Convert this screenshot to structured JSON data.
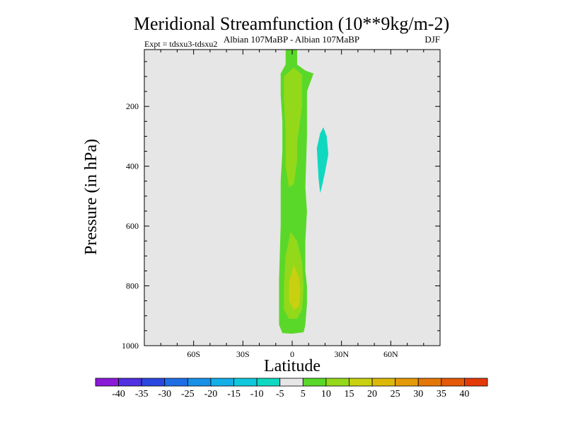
{
  "chart_data": {
    "type": "contour",
    "title": "Meridional Streamfunction (10**9kg/m-2)",
    "subtitle_left": "Albian   107MaBP - Albian   107MaBP",
    "subtitle_right": "DJF",
    "expt_label": "Expt = tdsxu3-tdsxu2",
    "xlabel": "Latitude",
    "ylabel": "Pressure (in hPa)",
    "xlim": [
      -90,
      90
    ],
    "ylim": [
      1000,
      10
    ],
    "x_ticks": [
      {
        "value": -60,
        "label": "60S"
      },
      {
        "value": -30,
        "label": "30S"
      },
      {
        "value": 0,
        "label": "0"
      },
      {
        "value": 30,
        "label": "30N"
      },
      {
        "value": 60,
        "label": "60N"
      }
    ],
    "y_ticks": [
      200,
      400,
      600,
      800,
      1000
    ],
    "background_color": "#e6e6e6",
    "contour_levels": [
      -40,
      -35,
      -30,
      -25,
      -20,
      -15,
      -10,
      -5,
      5,
      10,
      15,
      20,
      25,
      30,
      35,
      40
    ],
    "colorbar_colors": [
      "#8a1ad8",
      "#5030e0",
      "#2a48e0",
      "#1e6ee6",
      "#1890e8",
      "#14aee8",
      "#10c8dc",
      "#10d8c0",
      "#e6e6e6",
      "#5ad82a",
      "#94d81a",
      "#c8d010",
      "#dcb808",
      "#e49a08",
      "#e47608",
      "#e45a08",
      "#e43a08"
    ],
    "regions": [
      {
        "name": "positive-5-10",
        "fill": "#5ad82a",
        "points": [
          [
            -4,
            10
          ],
          [
            3,
            10
          ],
          [
            3,
            60
          ],
          [
            8,
            80
          ],
          [
            13,
            90
          ],
          [
            9,
            150
          ],
          [
            9,
            300
          ],
          [
            8,
            470
          ],
          [
            9,
            550
          ],
          [
            8,
            650
          ],
          [
            8,
            750
          ],
          [
            9,
            800
          ],
          [
            9,
            860
          ],
          [
            8,
            930
          ],
          [
            7,
            955
          ],
          [
            0,
            960
          ],
          [
            -6,
            958
          ],
          [
            -8,
            930
          ],
          [
            -8,
            780
          ],
          [
            -7,
            600
          ],
          [
            -7,
            450
          ],
          [
            -6,
            350
          ],
          [
            -6,
            250
          ],
          [
            -7,
            160
          ],
          [
            -7,
            90
          ],
          [
            -4,
            60
          ]
        ]
      },
      {
        "name": "positive-10-15-upper",
        "fill": "#94d81a",
        "points": [
          [
            -3,
            90
          ],
          [
            1,
            70
          ],
          [
            6,
            95
          ],
          [
            6,
            200
          ],
          [
            3,
            320
          ],
          [
            3,
            380
          ],
          [
            1,
            460
          ],
          [
            -2,
            470
          ],
          [
            -4,
            400
          ],
          [
            -4,
            280
          ],
          [
            -5,
            180
          ],
          [
            -5,
            100
          ]
        ]
      },
      {
        "name": "positive-10-15-lower",
        "fill": "#94d81a",
        "points": [
          [
            -1,
            620
          ],
          [
            3,
            650
          ],
          [
            6,
            720
          ],
          [
            7,
            800
          ],
          [
            6,
            880
          ],
          [
            3,
            910
          ],
          [
            -2,
            910
          ],
          [
            -5,
            880
          ],
          [
            -5,
            800
          ],
          [
            -4,
            700
          ]
        ]
      },
      {
        "name": "positive-15-20",
        "fill": "#c8d010",
        "points": [
          [
            1,
            730
          ],
          [
            4,
            770
          ],
          [
            5,
            820
          ],
          [
            4,
            870
          ],
          [
            1,
            880
          ],
          [
            -2,
            850
          ],
          [
            -2,
            790
          ]
        ]
      },
      {
        "name": "negative-minus10-minus5",
        "fill": "#10d8c0",
        "points": [
          [
            19,
            270
          ],
          [
            21,
            300
          ],
          [
            22,
            360
          ],
          [
            20,
            420
          ],
          [
            18,
            470
          ],
          [
            17,
            490
          ],
          [
            16,
            440
          ],
          [
            15,
            340
          ],
          [
            17,
            290
          ]
        ]
      }
    ]
  }
}
